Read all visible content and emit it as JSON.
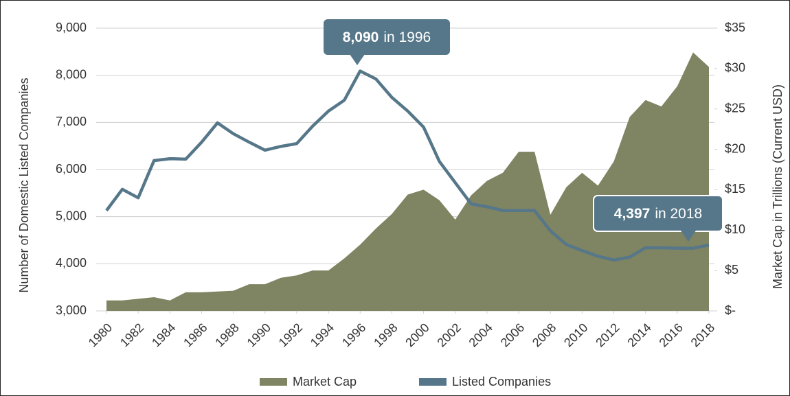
{
  "chart_data": {
    "type": "area-line",
    "x": [
      1980,
      1981,
      1982,
      1983,
      1984,
      1985,
      1986,
      1987,
      1988,
      1989,
      1990,
      1991,
      1992,
      1993,
      1994,
      1995,
      1996,
      1997,
      1998,
      1999,
      2000,
      2001,
      2002,
      2003,
      2004,
      2005,
      2006,
      2007,
      2008,
      2009,
      2010,
      2011,
      2012,
      2013,
      2014,
      2015,
      2016,
      2017,
      2018
    ],
    "xlim": [
      1980,
      2018
    ],
    "xticks": [
      1980,
      1982,
      1984,
      1986,
      1988,
      1990,
      1992,
      1994,
      1996,
      1998,
      2000,
      2002,
      2004,
      2006,
      2008,
      2010,
      2012,
      2014,
      2016,
      2018
    ],
    "ylabel": "Number of Domestic Listed Companies",
    "y2label": "Market Cap in Trillions (Current USD)",
    "ylim": [
      3000,
      9000
    ],
    "yticks": [
      {
        "value": 3000,
        "label": "3,000"
      },
      {
        "value": 4000,
        "label": "4,000"
      },
      {
        "value": 5000,
        "label": "5,000"
      },
      {
        "value": 6000,
        "label": "6,000"
      },
      {
        "value": 7000,
        "label": "7,000"
      },
      {
        "value": 8000,
        "label": "8,000"
      },
      {
        "value": 9000,
        "label": "9,000"
      }
    ],
    "y2lim": [
      0,
      35
    ],
    "y2ticks": [
      {
        "value": 0,
        "label": "$-"
      },
      {
        "value": 5,
        "label": "$5"
      },
      {
        "value": 10,
        "label": "$10"
      },
      {
        "value": 15,
        "label": "$15"
      },
      {
        "value": 20,
        "label": "$20"
      },
      {
        "value": 25,
        "label": "$25"
      },
      {
        "value": 30,
        "label": "$30"
      },
      {
        "value": 35,
        "label": "$35"
      }
    ],
    "grid": true,
    "legend": "bottom",
    "series": [
      {
        "name": "Market Cap",
        "color": "#7f8462",
        "axis": "y2",
        "kind": "area",
        "values": [
          1.3,
          1.3,
          1.5,
          1.7,
          1.3,
          2.3,
          2.3,
          2.4,
          2.5,
          3.3,
          3.3,
          4.1,
          4.4,
          5.0,
          5.0,
          6.5,
          8.2,
          10.2,
          12.0,
          14.4,
          15.0,
          13.7,
          11.3,
          14.3,
          16.1,
          17.1,
          19.7,
          19.7,
          11.9,
          15.3,
          17.1,
          15.5,
          18.5,
          24.0,
          26.1,
          25.3,
          27.8,
          32.0,
          30.2
        ]
      },
      {
        "name": "Listed Companies",
        "color": "#567789",
        "axis": "y",
        "kind": "line",
        "values": [
          5130,
          5580,
          5400,
          6190,
          6230,
          6220,
          6580,
          6990,
          6760,
          6580,
          6410,
          6490,
          6550,
          6920,
          7240,
          7470,
          8090,
          7920,
          7530,
          7240,
          6900,
          6170,
          5720,
          5270,
          5210,
          5130,
          5130,
          5130,
          4700,
          4410,
          4280,
          4160,
          4080,
          4140,
          4340,
          4340,
          4330,
          4330,
          4397
        ]
      }
    ],
    "annotations": [
      {
        "bold": "8,090",
        "text": "in 1996"
      },
      {
        "bold": "4,397",
        "text": "in 2018"
      }
    ]
  }
}
